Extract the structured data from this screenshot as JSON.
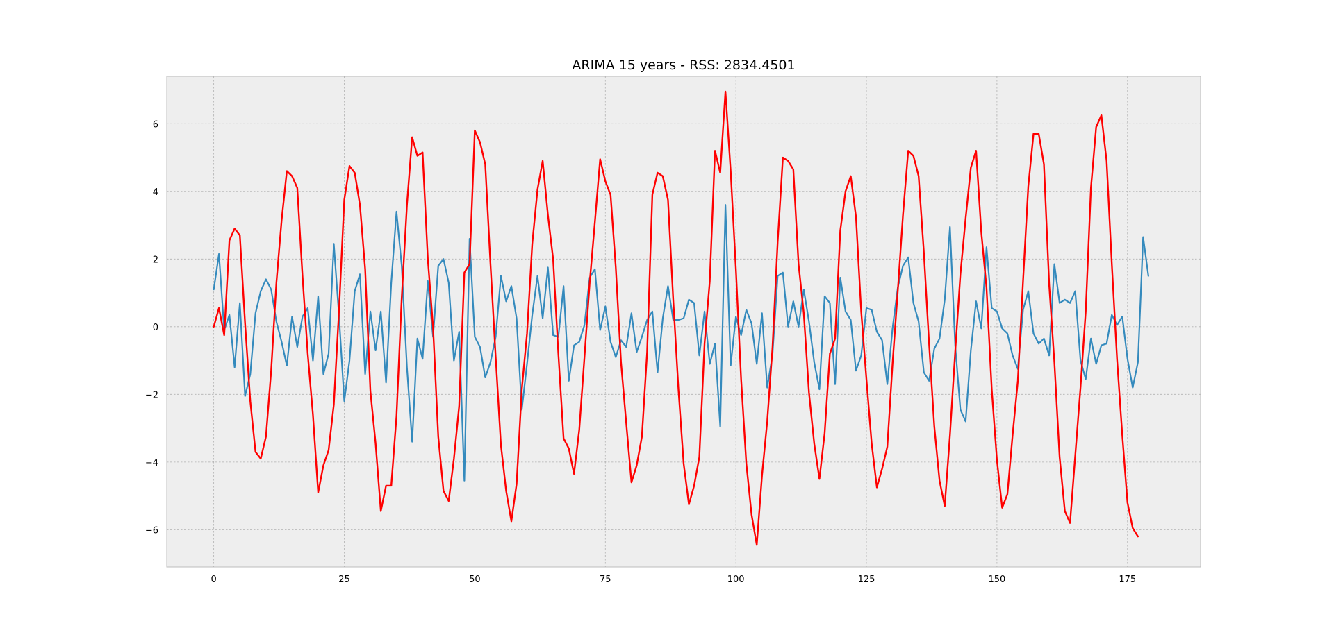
{
  "chart_data": {
    "type": "line",
    "title": "ARIMA 15 years - RSS: 2834.4501",
    "xlabel": "",
    "ylabel": "",
    "xlim": [
      -9,
      189
    ],
    "ylim": [
      -7.1,
      7.4
    ],
    "xticks": [
      0,
      25,
      50,
      75,
      100,
      125,
      150,
      175
    ],
    "yticks": [
      -6,
      -4,
      -2,
      0,
      2,
      4,
      6
    ],
    "grid": true,
    "legend": "none",
    "series": [
      {
        "color": "#348abd",
        "x_start": 0,
        "values": [
          1.1,
          2.15,
          -0.1,
          0.35,
          -1.2,
          0.7,
          -2.05,
          -1.4,
          0.4,
          1.05,
          1.4,
          1.1,
          0.15,
          -0.45,
          -1.15,
          0.3,
          -0.6,
          0.3,
          0.55,
          -1.0,
          0.9,
          -1.4,
          -0.8,
          2.45,
          0.3,
          -2.2,
          -1.0,
          1.05,
          1.55,
          -1.4,
          0.45,
          -0.7,
          0.45,
          -1.65,
          1.3,
          3.4,
          1.8,
          -1.2,
          -3.4,
          -0.35,
          -0.95,
          1.35,
          -0.3,
          1.8,
          2.0,
          1.3,
          -1.0,
          -0.15,
          -4.55,
          2.6,
          -0.3,
          -0.6,
          -1.5,
          -1.05,
          -0.3,
          1.5,
          0.75,
          1.2,
          0.25,
          -2.45,
          -1.1,
          0.35,
          1.5,
          0.25,
          1.75,
          -0.25,
          -0.3,
          1.2,
          -1.6,
          -0.55,
          -0.45,
          0.05,
          1.45,
          1.7,
          -0.1,
          0.6,
          -0.45,
          -0.9,
          -0.4,
          -0.6,
          0.4,
          -0.75,
          -0.3,
          0.2,
          0.45,
          -1.35,
          0.25,
          1.2,
          0.2,
          0.2,
          0.25,
          0.8,
          0.7,
          -0.85,
          0.45,
          -1.1,
          -0.5,
          -2.95,
          3.6,
          -1.15,
          0.3,
          -0.25,
          0.5,
          0.1,
          -1.1,
          0.4,
          -1.8,
          -0.85,
          1.5,
          1.6,
          0.0,
          0.75,
          0.0,
          1.1,
          0.15,
          -1.05,
          -1.85,
          0.9,
          0.7,
          -1.7,
          1.45,
          0.45,
          0.2,
          -1.3,
          -0.85,
          0.55,
          0.5,
          -0.15,
          -0.4,
          -1.7,
          -0.05,
          1.15,
          1.8,
          2.05,
          0.7,
          0.15,
          -1.35,
          -1.6,
          -0.65,
          -0.35,
          0.8,
          2.95,
          -0.55,
          -2.45,
          -2.8,
          -0.7,
          0.75,
          -0.05,
          2.35,
          0.55,
          0.45,
          -0.05,
          -0.2,
          -0.85,
          -1.25,
          0.5,
          1.05,
          -0.2,
          -0.5,
          -0.35,
          -0.85,
          1.85,
          0.7,
          0.8,
          0.7,
          1.05,
          -1.0,
          -1.55,
          -0.35,
          -1.1,
          -0.55,
          -0.5,
          0.35,
          0.05,
          0.3,
          -0.95,
          -1.8,
          -1.05,
          2.65,
          1.5
        ]
      },
      {
        "color": "#ff0000",
        "x_start": 0,
        "values": [
          0.0,
          0.55,
          -0.25,
          2.55,
          2.9,
          2.7,
          0.1,
          -2.2,
          -3.7,
          -3.9,
          -3.25,
          -1.3,
          1.3,
          3.15,
          4.6,
          4.45,
          4.1,
          1.5,
          -0.8,
          -2.6,
          -4.9,
          -4.1,
          -3.65,
          -2.3,
          0.5,
          3.75,
          4.75,
          4.55,
          3.6,
          1.7,
          -1.9,
          -3.45,
          -5.45,
          -4.7,
          -4.7,
          -2.65,
          0.85,
          3.6,
          5.6,
          5.05,
          5.15,
          2.0,
          0.0,
          -3.25,
          -4.85,
          -5.15,
          -3.9,
          -2.35,
          1.6,
          1.85,
          5.8,
          5.45,
          4.8,
          1.85,
          -0.9,
          -3.5,
          -4.85,
          -5.75,
          -4.65,
          -1.85,
          -0.2,
          2.45,
          4.05,
          4.9,
          3.3,
          2.0,
          -0.8,
          -3.3,
          -3.6,
          -4.35,
          -3.05,
          -0.9,
          1.3,
          3.1,
          4.95,
          4.3,
          3.9,
          1.75,
          -1.05,
          -2.85,
          -4.6,
          -4.1,
          -3.25,
          -0.75,
          3.9,
          4.55,
          4.45,
          3.75,
          0.8,
          -1.85,
          -4.05,
          -5.25,
          -4.7,
          -3.85,
          -0.5,
          1.35,
          5.2,
          4.55,
          6.95,
          4.6,
          1.7,
          -1.55,
          -4.05,
          -5.55,
          -6.45,
          -4.4,
          -2.8,
          -0.65,
          2.5,
          5.0,
          4.9,
          4.65,
          1.85,
          0.4,
          -1.95,
          -3.45,
          -4.5,
          -3.15,
          -0.8,
          -0.35,
          2.85,
          4.0,
          4.45,
          3.25,
          0.45,
          -1.55,
          -3.45,
          -4.75,
          -4.2,
          -3.55,
          -1.1,
          1.05,
          3.3,
          5.2,
          5.05,
          4.45,
          2.2,
          -0.5,
          -2.95,
          -4.55,
          -5.3,
          -3.2,
          -0.75,
          1.55,
          3.2,
          4.7,
          5.2,
          2.8,
          1.15,
          -1.85,
          -3.95,
          -5.35,
          -4.95,
          -3.2,
          -1.6,
          1.35,
          4.15,
          5.7,
          5.7,
          4.8,
          1.25,
          -1.05,
          -3.85,
          -5.45,
          -5.8,
          -3.8,
          -1.8,
          0.45,
          4.1,
          5.9,
          6.25,
          4.9,
          1.85,
          -0.95,
          -3.2,
          -5.2,
          -5.95,
          -6.2
        ]
      }
    ]
  }
}
